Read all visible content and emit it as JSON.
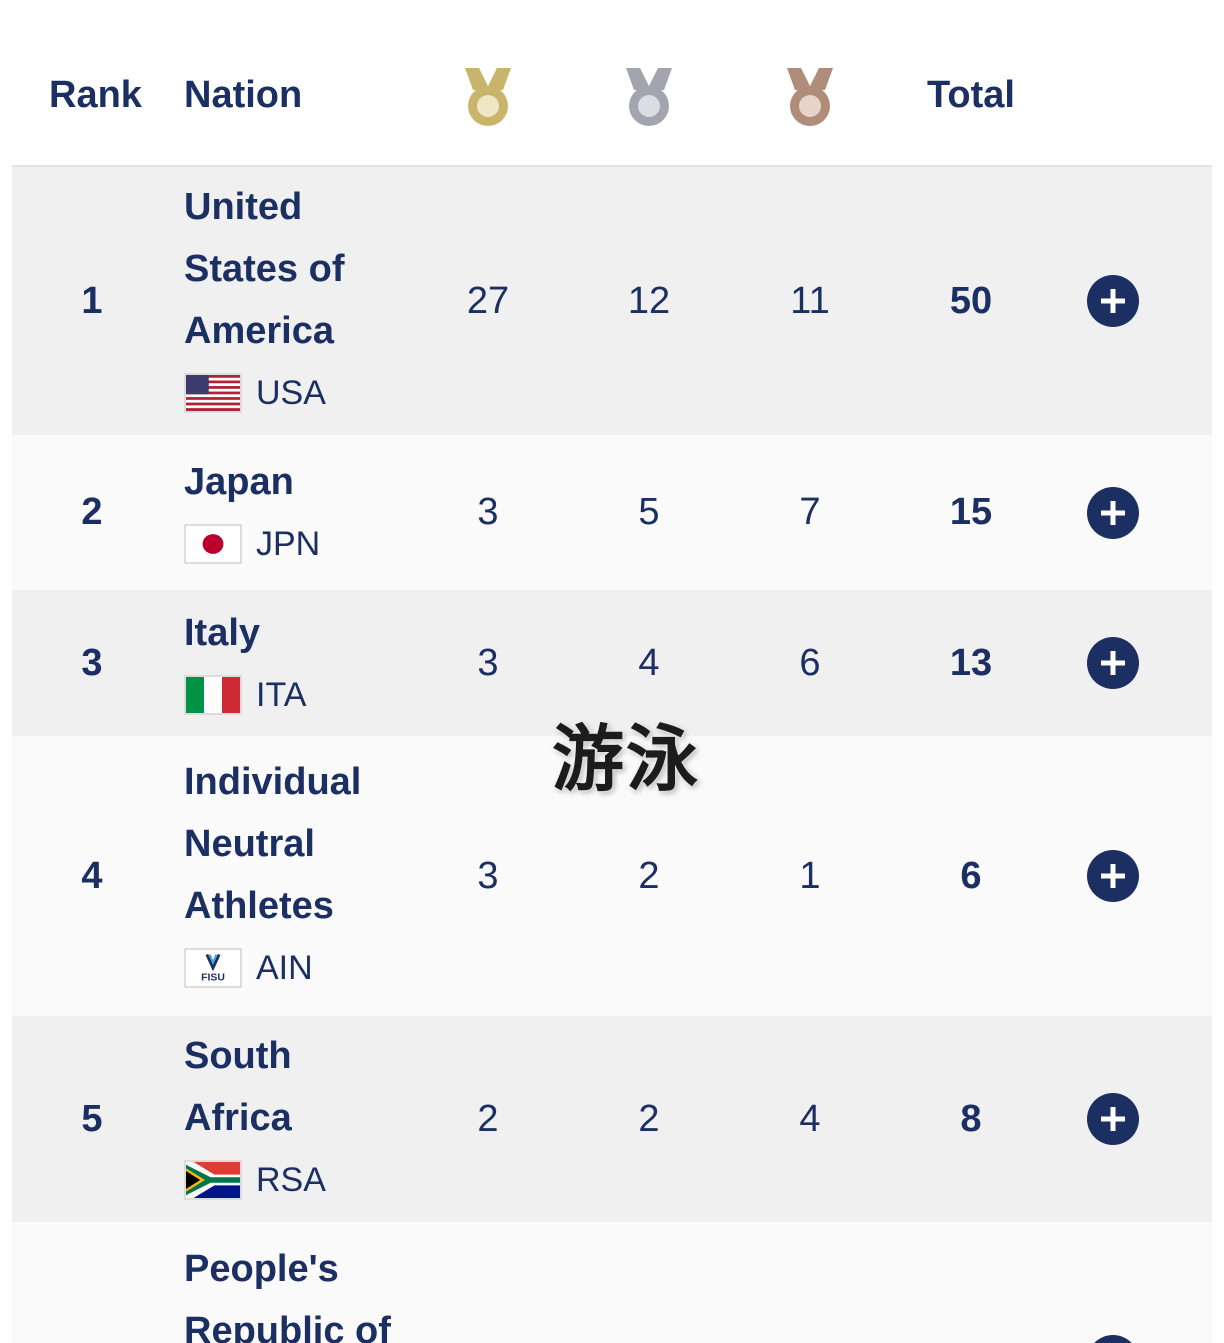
{
  "header": {
    "rank_label": "Rank",
    "nation_label": "Nation",
    "gold_icon": "gold-medal-icon",
    "silver_icon": "silver-medal-icon",
    "bronze_icon": "bronze-medal-icon",
    "total_label": "Total"
  },
  "rows": [
    {
      "rank": "1",
      "nation": "United States of America",
      "code": "USA",
      "gold": "27",
      "silver": "12",
      "bronze": "11",
      "total": "50"
    },
    {
      "rank": "2",
      "nation": "Japan",
      "code": "JPN",
      "gold": "3",
      "silver": "5",
      "bronze": "7",
      "total": "15"
    },
    {
      "rank": "3",
      "nation": "Italy",
      "code": "ITA",
      "gold": "3",
      "silver": "4",
      "bronze": "6",
      "total": "13"
    },
    {
      "rank": "4",
      "nation": "Individual Neutral Athletes",
      "code": "AIN",
      "gold": "3",
      "silver": "2",
      "bronze": "1",
      "total": "6",
      "flag_logo_text": "FISU"
    },
    {
      "rank": "5",
      "nation": "South Africa",
      "code": "RSA",
      "gold": "2",
      "silver": "2",
      "bronze": "4",
      "total": "8"
    },
    {
      "rank": "",
      "nation": "People's Republic of",
      "code": "",
      "gold": "",
      "silver": "",
      "bronze": "",
      "total": ""
    }
  ],
  "watermark": "游泳",
  "colors": {
    "text": "#1b2f63",
    "gold": "#c9b46b",
    "silver": "#a3a4ad",
    "bronze": "#b08d7b",
    "row_shade": "#f0f0f0",
    "row_light": "#fafafa"
  }
}
